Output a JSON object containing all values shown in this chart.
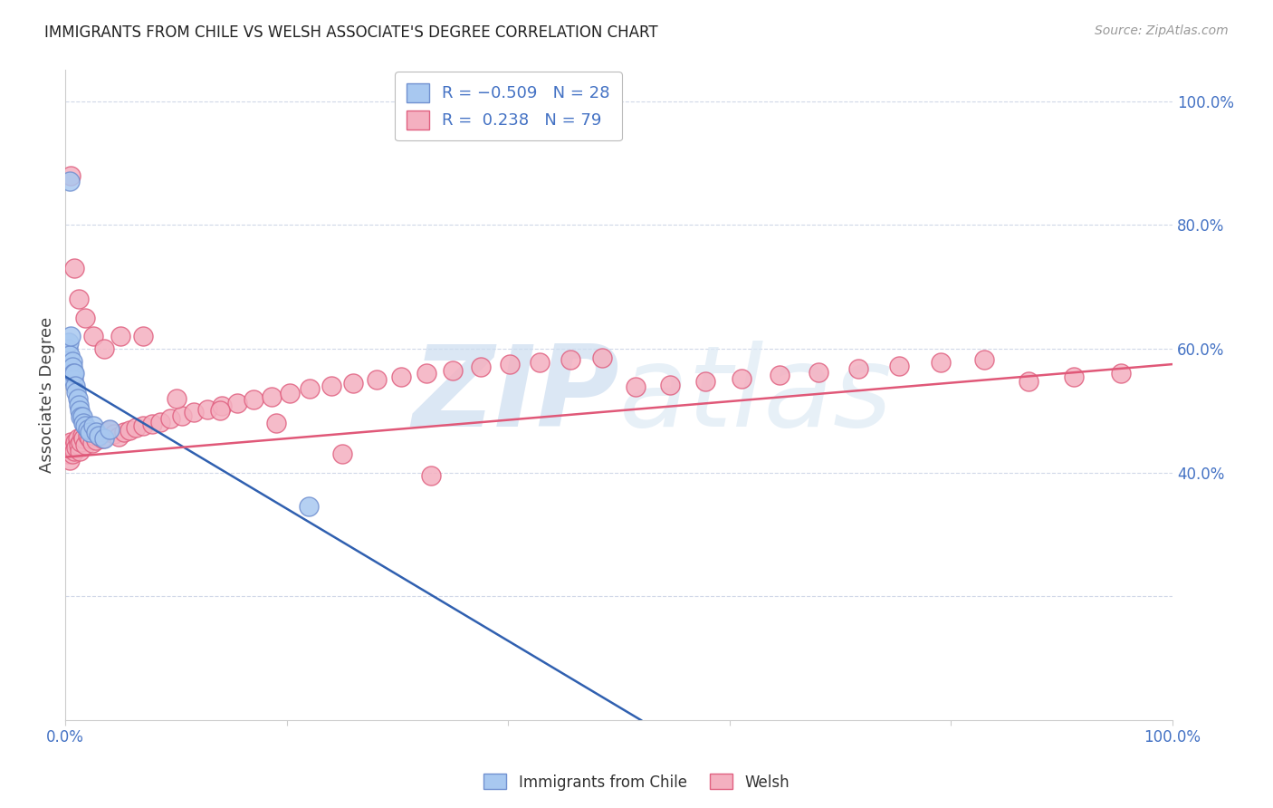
{
  "title": "IMMIGRANTS FROM CHILE VS WELSH ASSOCIATE'S DEGREE CORRELATION CHART",
  "source": "Source: ZipAtlas.com",
  "ylabel": "Associate's Degree",
  "right_yticks": [
    "40.0%",
    "60.0%",
    "80.0%",
    "100.0%"
  ],
  "right_ytick_vals": [
    0.4,
    0.6,
    0.8,
    1.0
  ],
  "blue_color": "#a8c8f0",
  "blue_edge": "#7090d0",
  "pink_color": "#f4b0c0",
  "pink_edge": "#e06080",
  "blue_line_color": "#3060b0",
  "pink_line_color": "#e05878",
  "scatter_blue_x": [
    0.002,
    0.003,
    0.004,
    0.005,
    0.005,
    0.006,
    0.006,
    0.007,
    0.007,
    0.008,
    0.009,
    0.01,
    0.011,
    0.012,
    0.013,
    0.014,
    0.015,
    0.016,
    0.018,
    0.02,
    0.022,
    0.025,
    0.028,
    0.03,
    0.035,
    0.04,
    0.22,
    0.004
  ],
  "scatter_blue_y": [
    0.6,
    0.61,
    0.59,
    0.62,
    0.56,
    0.58,
    0.57,
    0.55,
    0.56,
    0.56,
    0.54,
    0.53,
    0.52,
    0.51,
    0.5,
    0.49,
    0.49,
    0.48,
    0.475,
    0.47,
    0.465,
    0.475,
    0.465,
    0.46,
    0.455,
    0.47,
    0.345,
    0.87
  ],
  "scatter_pink_x": [
    0.002,
    0.003,
    0.004,
    0.005,
    0.006,
    0.007,
    0.008,
    0.009,
    0.01,
    0.011,
    0.012,
    0.013,
    0.014,
    0.015,
    0.016,
    0.018,
    0.02,
    0.022,
    0.024,
    0.026,
    0.028,
    0.03,
    0.033,
    0.036,
    0.04,
    0.044,
    0.048,
    0.053,
    0.058,
    0.064,
    0.07,
    0.078,
    0.086,
    0.095,
    0.105,
    0.116,
    0.128,
    0.141,
    0.155,
    0.17,
    0.186,
    0.203,
    0.221,
    0.24,
    0.26,
    0.281,
    0.303,
    0.326,
    0.35,
    0.375,
    0.401,
    0.428,
    0.456,
    0.485,
    0.515,
    0.546,
    0.578,
    0.611,
    0.645,
    0.68,
    0.716,
    0.753,
    0.791,
    0.83,
    0.87,
    0.911,
    0.953,
    0.005,
    0.008,
    0.012,
    0.018,
    0.025,
    0.035,
    0.05,
    0.07,
    0.1,
    0.14,
    0.19,
    0.25,
    0.33
  ],
  "scatter_pink_y": [
    0.43,
    0.445,
    0.42,
    0.45,
    0.43,
    0.44,
    0.435,
    0.45,
    0.44,
    0.455,
    0.445,
    0.435,
    0.45,
    0.46,
    0.455,
    0.445,
    0.46,
    0.455,
    0.448,
    0.46,
    0.452,
    0.46,
    0.455,
    0.465,
    0.468,
    0.462,
    0.458,
    0.465,
    0.468,
    0.472,
    0.475,
    0.478,
    0.482,
    0.488,
    0.492,
    0.498,
    0.502,
    0.508,
    0.512,
    0.518,
    0.522,
    0.528,
    0.535,
    0.54,
    0.545,
    0.55,
    0.555,
    0.56,
    0.565,
    0.57,
    0.575,
    0.578,
    0.582,
    0.585,
    0.538,
    0.542,
    0.548,
    0.552,
    0.558,
    0.562,
    0.568,
    0.572,
    0.578,
    0.582,
    0.548,
    0.554,
    0.56,
    0.88,
    0.73,
    0.68,
    0.65,
    0.62,
    0.6,
    0.62,
    0.62,
    0.52,
    0.5,
    0.48,
    0.43,
    0.395
  ],
  "blue_trendline_x": [
    0.0,
    0.52
  ],
  "blue_trendline_y": [
    0.555,
    0.0
  ],
  "pink_trendline_x": [
    0.0,
    1.0
  ],
  "pink_trendline_y": [
    0.425,
    0.575
  ],
  "xlim": [
    0.0,
    1.0
  ],
  "ylim": [
    0.0,
    1.05
  ],
  "grid_color": "#d0d8e8",
  "bg_color": "#ffffff",
  "watermark_color": "#ddeaf8",
  "title_fontsize": 12,
  "source_fontsize": 10,
  "axis_label_color": "#4472c4",
  "title_color": "#222222"
}
